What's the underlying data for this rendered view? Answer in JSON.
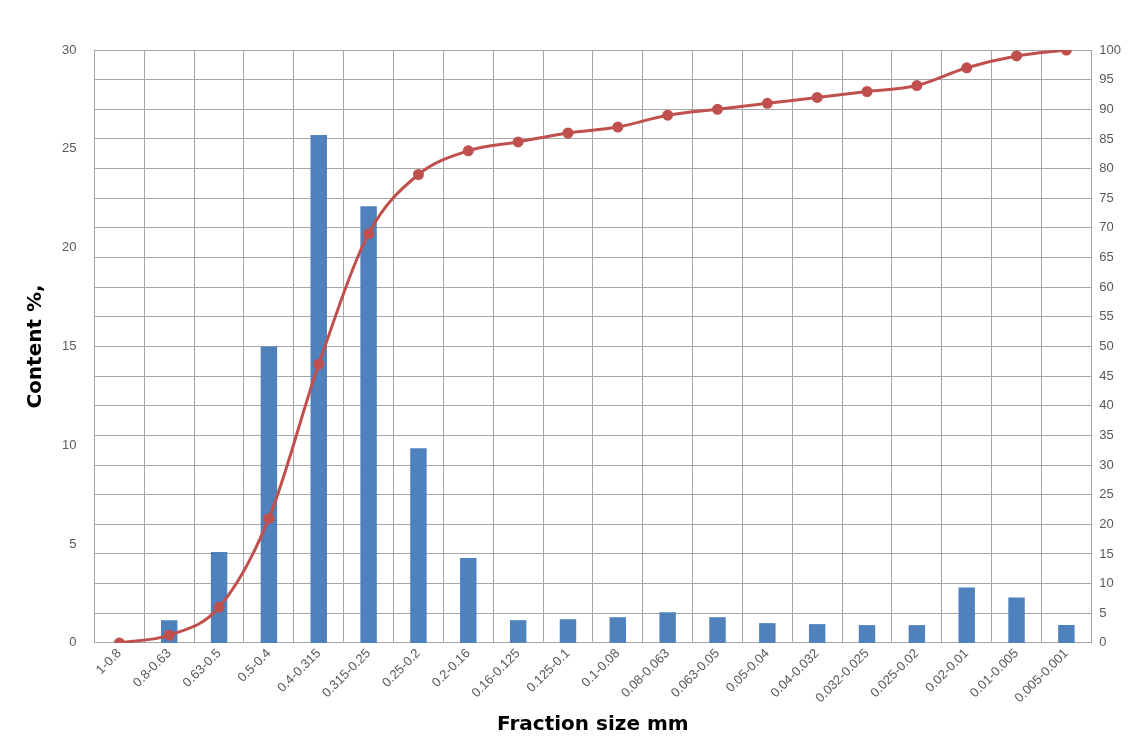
{
  "chart_data": {
    "type": "bar",
    "xlabel": "Fraction size mm",
    "ylabel": "Content %,",
    "categories": [
      "1-0.8",
      "0.8-0.63",
      "0.63-0.5",
      "0.5-0.4",
      "0.4-0.315",
      "0.315-0.25",
      "0.25-0.2",
      "0.2-0.16",
      "0.16-0.125",
      "0.125-0.1",
      "0.1-0.08",
      "0.08-0.063",
      "0.063-0.05",
      "0.05-0.04",
      "0.04-0.032",
      "0.032-0.025",
      "0.025-0.02",
      "0.02-0.01",
      "0.01-0.005",
      "0.005-0.001"
    ],
    "series": [
      {
        "color": "#4f81bd",
        "values": [
          0,
          1.15,
          4.6,
          15.0,
          25.7,
          22.1,
          9.85,
          4.3,
          1.15,
          1.2,
          1.3,
          1.55,
          1.3,
          1.0,
          0.95,
          0.9,
          0.9,
          2.8,
          2.3,
          0.9
        ]
      },
      {
        "type": "line",
        "axis": "y2",
        "color": "#c0504d",
        "values": [
          0,
          1.3,
          6,
          21,
          47,
          69,
          79,
          83,
          84.5,
          86,
          87,
          89,
          90,
          91,
          92,
          93,
          94,
          97,
          99,
          100
        ]
      }
    ],
    "ylim": [
      0,
      30
    ],
    "yticks": [
      0,
      5,
      10,
      15,
      20,
      25,
      30
    ],
    "y2lim": [
      0,
      100
    ],
    "y2ticks": [
      0,
      5,
      10,
      15,
      20,
      25,
      30,
      35,
      40,
      45,
      50,
      55,
      60,
      65,
      70,
      75,
      80,
      85,
      90,
      95,
      100
    ],
    "grid": true,
    "marker": "circle",
    "line_style": "solid"
  }
}
